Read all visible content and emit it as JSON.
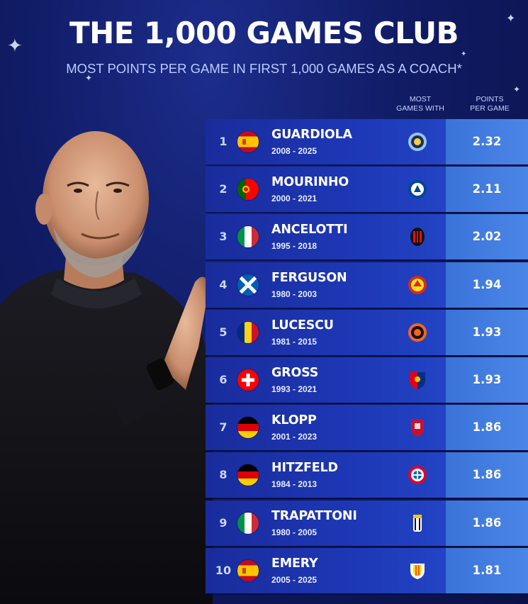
{
  "header": {
    "title": "THE 1,000 GAMES CLUB",
    "subtitle": "MOST POINTS PER GAME IN FIRST 1,000 GAMES AS A COACH*"
  },
  "columns": {
    "most_games_with": [
      "MOST",
      "GAMES WITH"
    ],
    "points_per_game": [
      "POINTS",
      "PER GAME"
    ]
  },
  "colors": {
    "background": "#101b63",
    "row_left": "#1d37b5",
    "row_right": "#4a86e6",
    "subtitle": "#b9cbff"
  },
  "coaches": [
    {
      "rank": "1",
      "name": "GUARDIOLA",
      "years": "2008 - 2025",
      "flag": "spain-flag",
      "club_crest": "manchester-city-crest",
      "ppg": "2.32"
    },
    {
      "rank": "2",
      "name": "MOURINHO",
      "years": "2000 - 2021",
      "flag": "portugal-flag",
      "club_crest": "chelsea-crest",
      "ppg": "2.11"
    },
    {
      "rank": "3",
      "name": "ANCELOTTI",
      "years": "1995 - 2018",
      "flag": "italy-flag",
      "club_crest": "ac-milan-crest",
      "ppg": "2.02"
    },
    {
      "rank": "4",
      "name": "FERGUSON",
      "years": "1980 - 2003",
      "flag": "scotland-flag",
      "club_crest": "manchester-united-crest",
      "ppg": "1.94"
    },
    {
      "rank": "5",
      "name": "LUCESCU",
      "years": "1981 - 2015",
      "flag": "romania-flag",
      "club_crest": "shakhtar-donetsk-crest",
      "ppg": "1.93"
    },
    {
      "rank": "6",
      "name": "GROSS",
      "years": "1993 - 2021",
      "flag": "switzerland-flag",
      "club_crest": "fc-basel-crest",
      "ppg": "1.93"
    },
    {
      "rank": "7",
      "name": "KLOPP",
      "years": "2001 - 2023",
      "flag": "germany-flag",
      "club_crest": "liverpool-crest",
      "ppg": "1.86"
    },
    {
      "rank": "8",
      "name": "HITZFELD",
      "years": "1984 - 2013",
      "flag": "germany-flag",
      "club_crest": "bayern-munich-crest",
      "ppg": "1.86"
    },
    {
      "rank": "9",
      "name": "TRAPATTONI",
      "years": "1980 - 2005",
      "flag": "italy-flag",
      "club_crest": "juventus-crest",
      "ppg": "1.86"
    },
    {
      "rank": "10",
      "name": "EMERY",
      "years": "2005 - 2025",
      "flag": "spain-flag",
      "club_crest": "valencia-crest",
      "ppg": "1.81"
    }
  ]
}
